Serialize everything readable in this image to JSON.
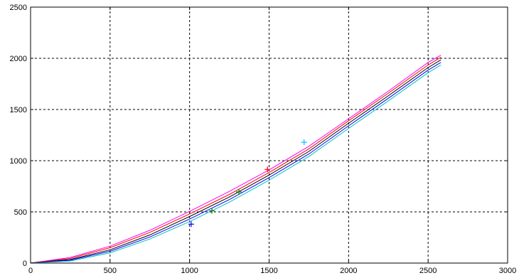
{
  "chart_data": {
    "type": "line",
    "title": "",
    "xlabel": "",
    "ylabel": "",
    "xlim": [
      0,
      3000
    ],
    "ylim": [
      0,
      2500
    ],
    "xticks": [
      0,
      500,
      1000,
      1500,
      2000,
      2500,
      3000
    ],
    "yticks": [
      0,
      500,
      1000,
      1500,
      2000,
      2500
    ],
    "xtick_labels": [
      "0",
      "500",
      "1000",
      "1500",
      "2000",
      "2500",
      "3000"
    ],
    "ytick_labels": [
      "0",
      "500",
      "1000",
      "1500",
      "2000",
      "2500"
    ],
    "grid": true,
    "legend": null,
    "series": [
      {
        "color": "#ff00ff",
        "x": [
          0,
          250,
          500,
          750,
          1000,
          1250,
          1500,
          1750,
          2000,
          2250,
          2500,
          2580
        ],
        "y": [
          0,
          55,
          165,
          320,
          505,
          700,
          910,
          1140,
          1410,
          1680,
          1960,
          2030
        ]
      },
      {
        "color": "#ff0000",
        "x": [
          0,
          250,
          500,
          750,
          1000,
          1250,
          1500,
          1750,
          2000,
          2250,
          2500,
          2580
        ],
        "y": [
          0,
          45,
          150,
          300,
          480,
          670,
          885,
          1115,
          1390,
          1660,
          1935,
          2010
        ]
      },
      {
        "color": "#000000",
        "x": [
          0,
          250,
          500,
          750,
          1000,
          1250,
          1500,
          1750,
          2000,
          2250,
          2500,
          2580
        ],
        "y": [
          0,
          35,
          130,
          275,
          455,
          645,
          860,
          1090,
          1365,
          1635,
          1910,
          1985
        ]
      },
      {
        "color": "#0000ff",
        "x": [
          0,
          250,
          500,
          750,
          1000,
          1250,
          1500,
          1750,
          2000,
          2250,
          2500,
          2580
        ],
        "y": [
          0,
          28,
          115,
          255,
          430,
          620,
          835,
          1065,
          1340,
          1610,
          1885,
          1960
        ]
      },
      {
        "color": "#00c0c0",
        "x": [
          0,
          250,
          500,
          750,
          1000,
          1250,
          1500,
          1750,
          2000,
          2250,
          2500,
          2580
        ],
        "y": [
          0,
          20,
          100,
          235,
          405,
          595,
          810,
          1040,
          1315,
          1585,
          1860,
          1935
        ]
      }
    ],
    "markers": [
      {
        "color": "#0000ff",
        "x": 1010,
        "y": 380
      },
      {
        "color": "#008000",
        "x": 1140,
        "y": 510
      },
      {
        "color": "#008000",
        "x": 1310,
        "y": 695
      },
      {
        "color": "#ff0000",
        "x": 1490,
        "y": 915
      },
      {
        "color": "#00c0ff",
        "x": 1720,
        "y": 1180
      }
    ]
  }
}
